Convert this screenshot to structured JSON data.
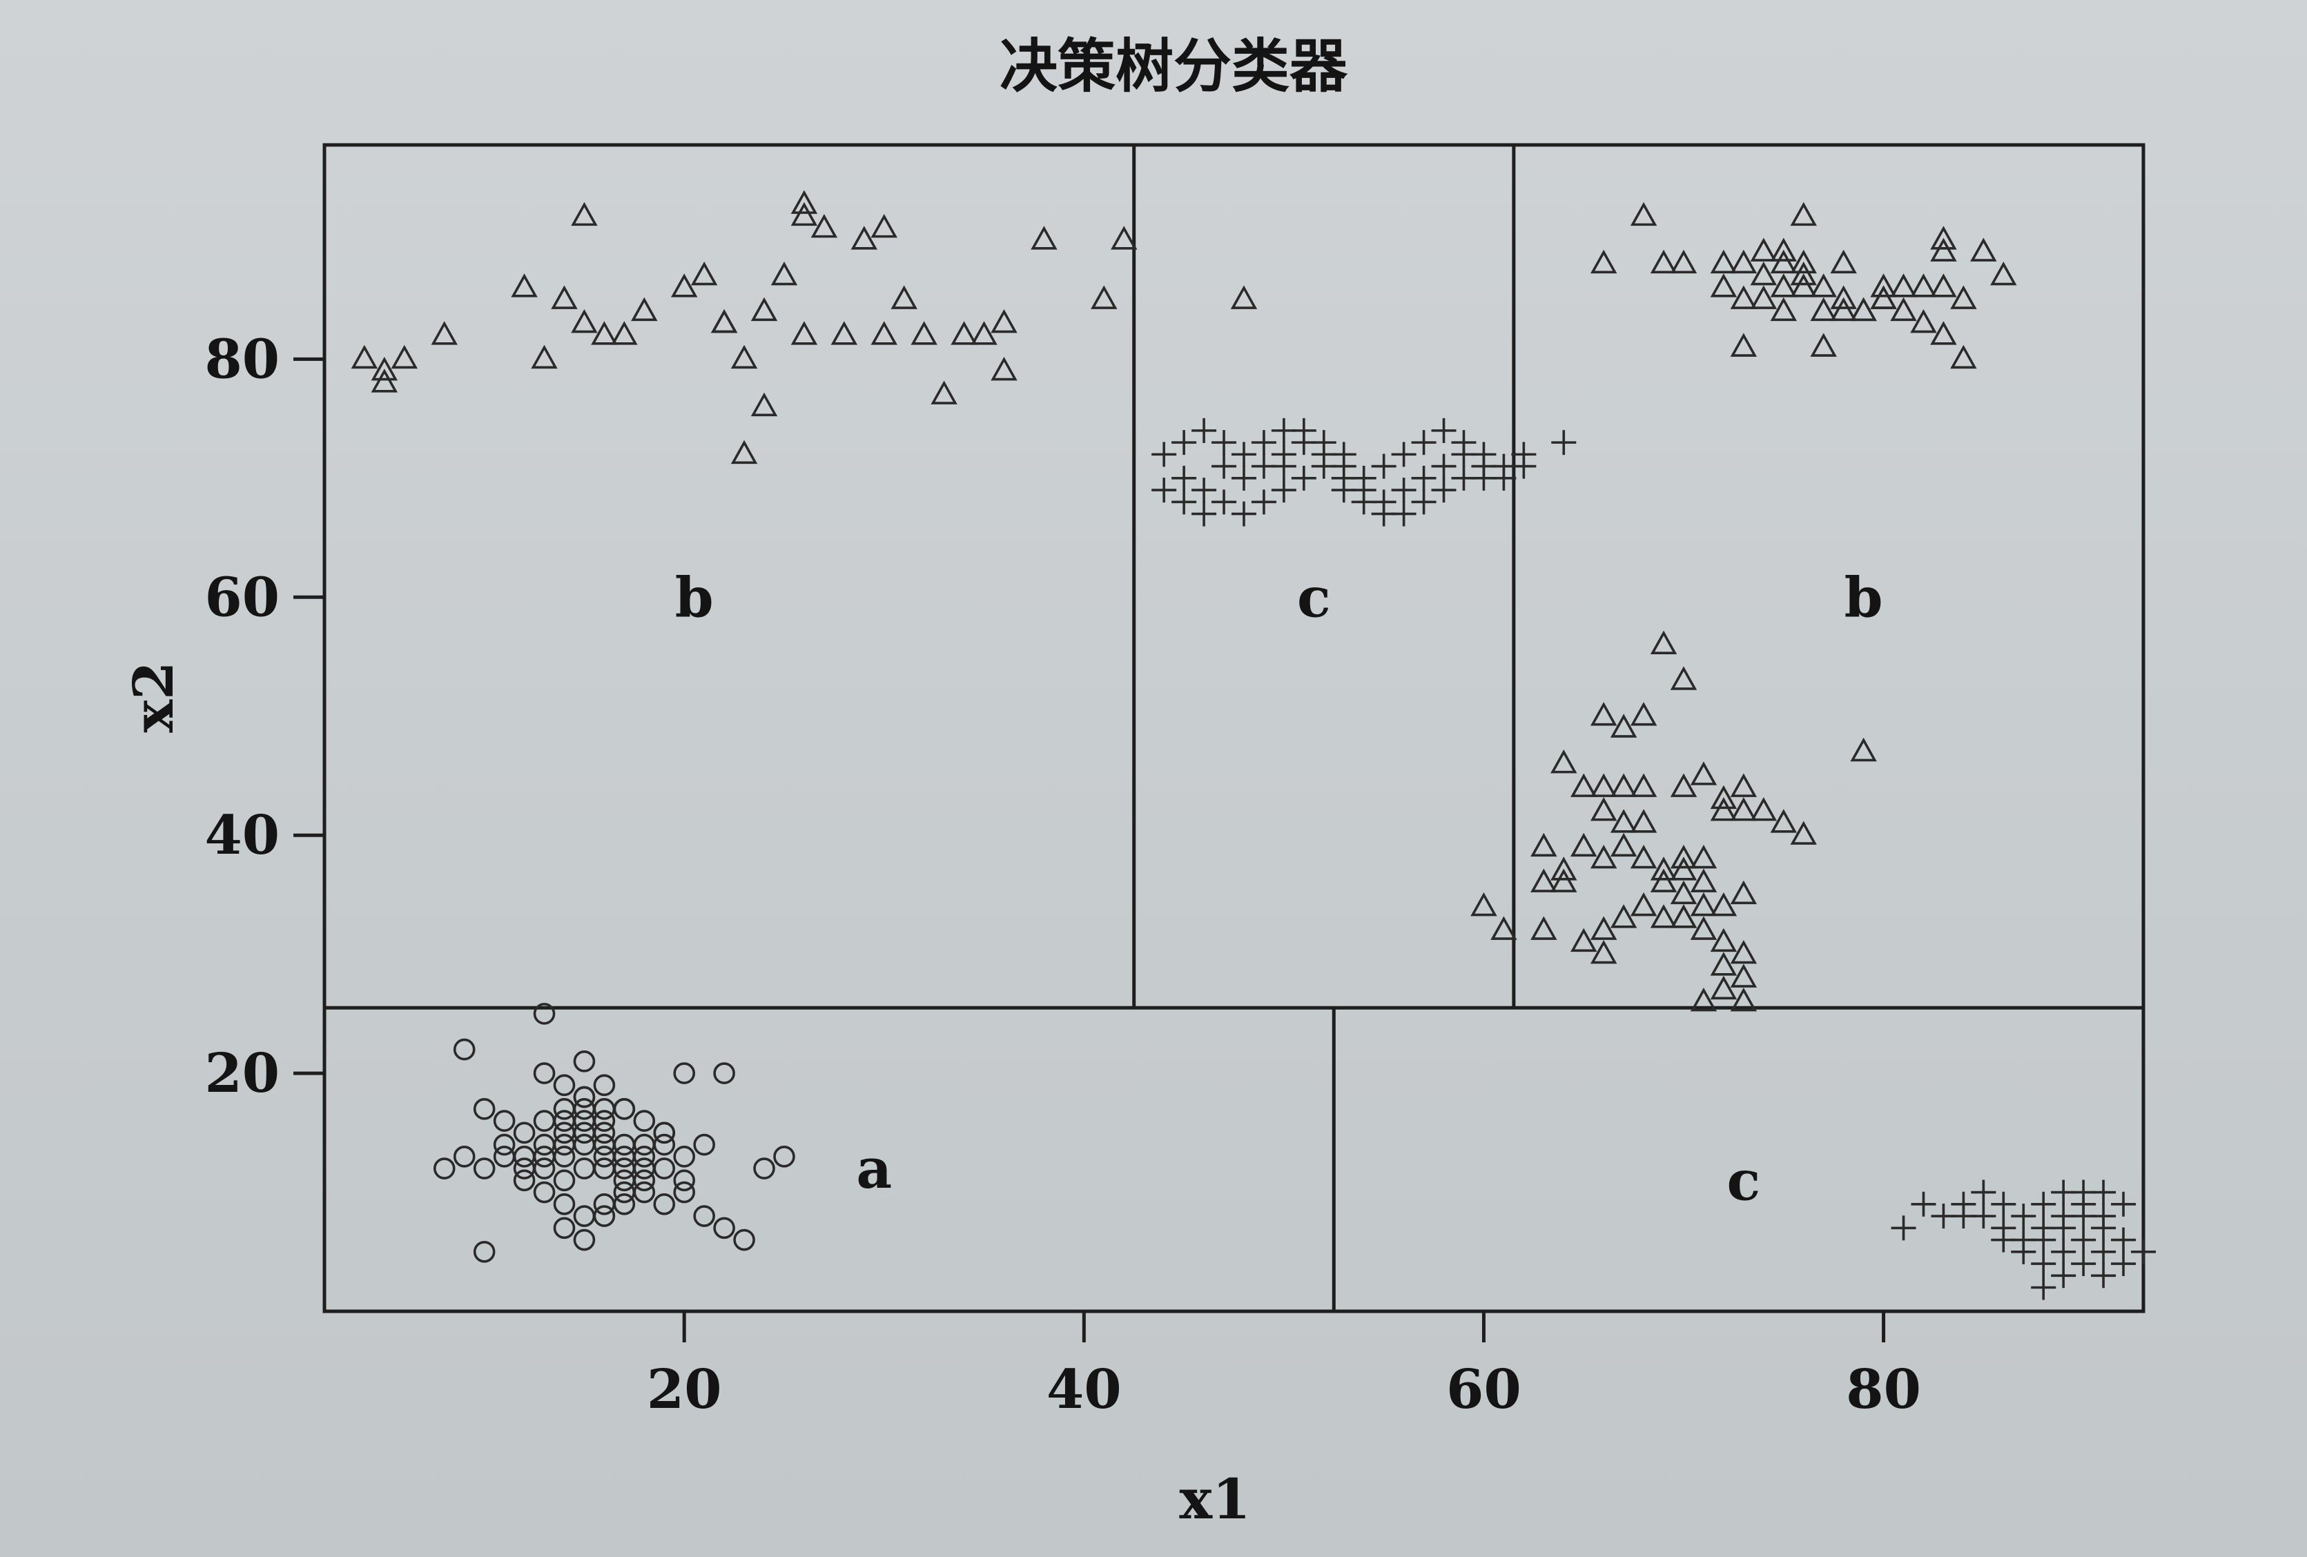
{
  "chart_data": {
    "type": "scatter",
    "title": "决策树分类器",
    "xlabel": "x1",
    "ylabel": "x2",
    "xlim": [
      2,
      93
    ],
    "ylim": [
      0,
      98
    ],
    "x_ticks": [
      20,
      40,
      60,
      80
    ],
    "y_ticks": [
      20,
      40,
      60,
      80
    ],
    "grid": false,
    "legend": "none",
    "splits": [
      {
        "orientation": "horizontal",
        "y": 25.5,
        "x_from": 2,
        "x_to": 93
      },
      {
        "orientation": "vertical",
        "x": 42.5,
        "y_from": 25.5,
        "y_to": 98
      },
      {
        "orientation": "vertical",
        "x": 61.5,
        "y_from": 25.5,
        "y_to": 98
      },
      {
        "orientation": "vertical",
        "x": 52.5,
        "y_from": 0,
        "y_to": 25.5
      }
    ],
    "regions": [
      {
        "label": "b",
        "x": 20.5,
        "y": 60
      },
      {
        "label": "c",
        "x": 51.5,
        "y": 60
      },
      {
        "label": "b",
        "x": 79,
        "y": 60
      },
      {
        "label": "a",
        "x": 29.5,
        "y": 12
      },
      {
        "label": "c",
        "x": 73,
        "y": 11
      }
    ],
    "series": [
      {
        "marker": "triangle",
        "points": [
          [
            4,
            80
          ],
          [
            5,
            79
          ],
          [
            6,
            80
          ],
          [
            5,
            78
          ],
          [
            8,
            82
          ],
          [
            12,
            86
          ],
          [
            13,
            80
          ],
          [
            14,
            85
          ],
          [
            15,
            83
          ],
          [
            16,
            82
          ],
          [
            17,
            82
          ],
          [
            18,
            84
          ],
          [
            20,
            86
          ],
          [
            21,
            87
          ],
          [
            15,
            92
          ],
          [
            22,
            83
          ],
          [
            23,
            80
          ],
          [
            24,
            76
          ],
          [
            23,
            72
          ],
          [
            24,
            84
          ],
          [
            25,
            87
          ],
          [
            28,
            82
          ],
          [
            27,
            91
          ],
          [
            29,
            90
          ],
          [
            30,
            91
          ],
          [
            31,
            85
          ],
          [
            32,
            82
          ],
          [
            33,
            77
          ],
          [
            35,
            82
          ],
          [
            36,
            83
          ],
          [
            36,
            79
          ],
          [
            38,
            90
          ],
          [
            42,
            90
          ],
          [
            41,
            85
          ],
          [
            26,
            92
          ],
          [
            26,
            93
          ],
          [
            22,
            83
          ],
          [
            30,
            82
          ],
          [
            34,
            82
          ],
          [
            26,
            82
          ],
          [
            48,
            85
          ],
          [
            68,
            92
          ],
          [
            76,
            92
          ],
          [
            66,
            88
          ],
          [
            69,
            88
          ],
          [
            70,
            88
          ],
          [
            72,
            88
          ],
          [
            74,
            87
          ],
          [
            75,
            88
          ],
          [
            75,
            86
          ],
          [
            76,
            86
          ],
          [
            76,
            87
          ],
          [
            77,
            86
          ],
          [
            78,
            85
          ],
          [
            79,
            84
          ],
          [
            80,
            85
          ],
          [
            81,
            86
          ],
          [
            82,
            86
          ],
          [
            83,
            86
          ],
          [
            84,
            85
          ],
          [
            85,
            89
          ],
          [
            73,
            85
          ],
          [
            74,
            85
          ],
          [
            75,
            84
          ],
          [
            77,
            84
          ],
          [
            78,
            84
          ],
          [
            79,
            84
          ],
          [
            81,
            84
          ],
          [
            82,
            83
          ],
          [
            83,
            82
          ],
          [
            84,
            80
          ],
          [
            77,
            81
          ],
          [
            73,
            81
          ],
          [
            74,
            89
          ],
          [
            75,
            89
          ],
          [
            73,
            88
          ],
          [
            76,
            88
          ],
          [
            78,
            88
          ],
          [
            80,
            86
          ],
          [
            83,
            89
          ],
          [
            86,
            87
          ],
          [
            83,
            90
          ],
          [
            80,
            85
          ],
          [
            72,
            86
          ],
          [
            69,
            56
          ],
          [
            70,
            53
          ],
          [
            66,
            50
          ],
          [
            67,
            49
          ],
          [
            68,
            50
          ],
          [
            64,
            46
          ],
          [
            65,
            44
          ],
          [
            66,
            44
          ],
          [
            67,
            41
          ],
          [
            68,
            41
          ],
          [
            66,
            42
          ],
          [
            67,
            44
          ],
          [
            68,
            44
          ],
          [
            70,
            44
          ],
          [
            71,
            45
          ],
          [
            72,
            43
          ],
          [
            73,
            42
          ],
          [
            74,
            42
          ],
          [
            75,
            41
          ],
          [
            76,
            40
          ],
          [
            72,
            42
          ],
          [
            73,
            44
          ],
          [
            63,
            39
          ],
          [
            64,
            37
          ],
          [
            63,
            36
          ],
          [
            64,
            36
          ],
          [
            65,
            39
          ],
          [
            66,
            38
          ],
          [
            67,
            39
          ],
          [
            68,
            38
          ],
          [
            69,
            37
          ],
          [
            70,
            38
          ],
          [
            70,
            37
          ],
          [
            71,
            38
          ],
          [
            69,
            36
          ],
          [
            70,
            35
          ],
          [
            71,
            34
          ],
          [
            72,
            34
          ],
          [
            73,
            35
          ],
          [
            68,
            34
          ],
          [
            69,
            33
          ],
          [
            70,
            33
          ],
          [
            71,
            32
          ],
          [
            72,
            31
          ],
          [
            73,
            30
          ],
          [
            72,
            29
          ],
          [
            73,
            28
          ],
          [
            72,
            27
          ],
          [
            71,
            26
          ],
          [
            67,
            33
          ],
          [
            66,
            32
          ],
          [
            65,
            31
          ],
          [
            66,
            30
          ],
          [
            60,
            34
          ],
          [
            61,
            32
          ],
          [
            63,
            32
          ],
          [
            79,
            47
          ],
          [
            73,
            26
          ],
          [
            70,
            33
          ],
          [
            71,
            36
          ]
        ]
      },
      {
        "marker": "circle",
        "points": [
          [
            8,
            12
          ],
          [
            9,
            13
          ],
          [
            10,
            12
          ],
          [
            11,
            13
          ],
          [
            12,
            12
          ],
          [
            13,
            13
          ],
          [
            14,
            14
          ],
          [
            15,
            15
          ],
          [
            16,
            14
          ],
          [
            17,
            13
          ],
          [
            18,
            14
          ],
          [
            19,
            15
          ],
          [
            13,
            16
          ],
          [
            14,
            17
          ],
          [
            15,
            18
          ],
          [
            16,
            16
          ],
          [
            17,
            17
          ],
          [
            12,
            11
          ],
          [
            13,
            10
          ],
          [
            14,
            9
          ],
          [
            15,
            8
          ],
          [
            16,
            9
          ],
          [
            17,
            10
          ],
          [
            18,
            11
          ],
          [
            19,
            12
          ],
          [
            20,
            11
          ],
          [
            14,
            11
          ],
          [
            15,
            12
          ],
          [
            16,
            13
          ],
          [
            17,
            12
          ],
          [
            13,
            14
          ],
          [
            14,
            15
          ],
          [
            15,
            16
          ],
          [
            16,
            17
          ],
          [
            12,
            15
          ],
          [
            11,
            16
          ],
          [
            10,
            17
          ],
          [
            9,
            22
          ],
          [
            13,
            25
          ],
          [
            15,
            21
          ],
          [
            20,
            20
          ],
          [
            22,
            20
          ],
          [
            24,
            12
          ],
          [
            25,
            13
          ],
          [
            21,
            8
          ],
          [
            22,
            7
          ],
          [
            23,
            6
          ],
          [
            10,
            5
          ],
          [
            14,
            7
          ],
          [
            15,
            6
          ],
          [
            16,
            8
          ],
          [
            17,
            9
          ],
          [
            18,
            10
          ],
          [
            19,
            9
          ],
          [
            20,
            10
          ],
          [
            13,
            20
          ],
          [
            14,
            19
          ],
          [
            15,
            18
          ],
          [
            16,
            19
          ],
          [
            17,
            17
          ],
          [
            18,
            16
          ],
          [
            19,
            15
          ],
          [
            11,
            14
          ],
          [
            12,
            13
          ],
          [
            13,
            12
          ],
          [
            14,
            13
          ],
          [
            15,
            14
          ],
          [
            16,
            15
          ],
          [
            17,
            14
          ],
          [
            18,
            13
          ],
          [
            19,
            14
          ],
          [
            20,
            13
          ],
          [
            21,
            14
          ],
          [
            14,
            16
          ],
          [
            15,
            17
          ],
          [
            16,
            12
          ],
          [
            17,
            11
          ],
          [
            18,
            12
          ]
        ]
      },
      {
        "marker": "plus",
        "points": [
          [
            44,
            72
          ],
          [
            45,
            73
          ],
          [
            46,
            74
          ],
          [
            47,
            73
          ],
          [
            48,
            72
          ],
          [
            49,
            71
          ],
          [
            50,
            72
          ],
          [
            51,
            73
          ],
          [
            52,
            72
          ],
          [
            53,
            71
          ],
          [
            54,
            70
          ],
          [
            55,
            71
          ],
          [
            56,
            72
          ],
          [
            57,
            73
          ],
          [
            58,
            74
          ],
          [
            59,
            73
          ],
          [
            60,
            72
          ],
          [
            61,
            71
          ],
          [
            62,
            72
          ],
          [
            45,
            70
          ],
          [
            46,
            69
          ],
          [
            47,
            68
          ],
          [
            48,
            67
          ],
          [
            49,
            68
          ],
          [
            50,
            69
          ],
          [
            51,
            70
          ],
          [
            52,
            71
          ],
          [
            53,
            70
          ],
          [
            54,
            69
          ],
          [
            55,
            68
          ],
          [
            56,
            69
          ],
          [
            57,
            70
          ],
          [
            58,
            71
          ],
          [
            59,
            70
          ],
          [
            60,
            71
          ],
          [
            47,
            71
          ],
          [
            48,
            70
          ],
          [
            49,
            73
          ],
          [
            50,
            74
          ],
          [
            51,
            74
          ],
          [
            52,
            73
          ],
          [
            53,
            69
          ],
          [
            54,
            68
          ],
          [
            55,
            67
          ],
          [
            56,
            67
          ],
          [
            57,
            68
          ],
          [
            58,
            69
          ],
          [
            59,
            72
          ],
          [
            60,
            70
          ],
          [
            61,
            70
          ],
          [
            62,
            71
          ],
          [
            64,
            73
          ],
          [
            44,
            69
          ],
          [
            45,
            68
          ],
          [
            46,
            67
          ],
          [
            50,
            71
          ],
          [
            53,
            72
          ],
          [
            81,
            7
          ],
          [
            82,
            9
          ],
          [
            83,
            8
          ],
          [
            84,
            9
          ],
          [
            85,
            8
          ],
          [
            86,
            7
          ],
          [
            87,
            6
          ],
          [
            88,
            7
          ],
          [
            89,
            8
          ],
          [
            90,
            9
          ],
          [
            91,
            8
          ],
          [
            92,
            9
          ],
          [
            86,
            6
          ],
          [
            87,
            5
          ],
          [
            88,
            4
          ],
          [
            89,
            5
          ],
          [
            90,
            6
          ],
          [
            91,
            5
          ],
          [
            87,
            8
          ],
          [
            88,
            9
          ],
          [
            89,
            10
          ],
          [
            90,
            8
          ],
          [
            91,
            7
          ],
          [
            92,
            6
          ],
          [
            86,
            9
          ],
          [
            85,
            10
          ],
          [
            84,
            8
          ],
          [
            88,
            6
          ],
          [
            89,
            7
          ],
          [
            90,
            10
          ],
          [
            91,
            10
          ],
          [
            88,
            2
          ],
          [
            89,
            3
          ],
          [
            90,
            4
          ],
          [
            91,
            3
          ],
          [
            92,
            4
          ],
          [
            93,
            5
          ]
        ]
      }
    ]
  }
}
